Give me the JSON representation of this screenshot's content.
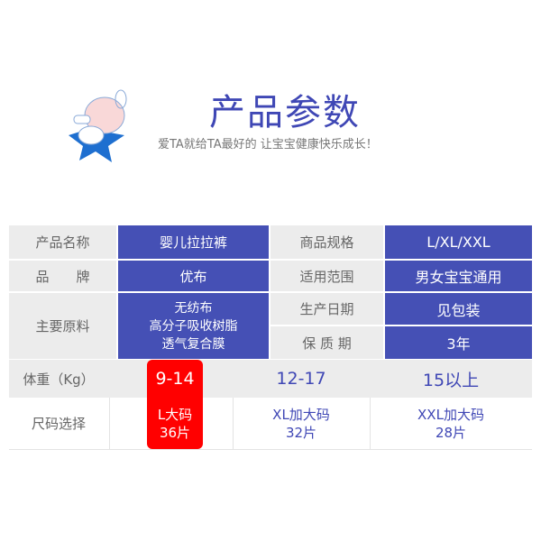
{
  "header": {
    "title": "产品参数",
    "subtitle": "爱TA就给TA最好的 让宝宝健康快乐成长！"
  },
  "colors": {
    "accent": "#4550b5",
    "highlight": "#ff0000",
    "label_bg": "#ececec"
  },
  "specs": {
    "name_label": "产品名称",
    "name_value": "婴儿拉拉裤",
    "spec_label": "商品规格",
    "spec_value": "L/XL/XXL",
    "brand_label": "品　　牌",
    "brand_value": "优布",
    "range_label": "适用范围",
    "range_value": "男女宝宝通用",
    "material_label": "主要原料",
    "material_values": [
      "无纺布",
      "高分子吸收树脂",
      "透气复合膜"
    ],
    "date_label": "生产日期",
    "date_value": "见包装",
    "shelf_label": "保 质 期",
    "shelf_value": "3年"
  },
  "sizes": {
    "weight_label": "体重（Kg）",
    "size_label": "尺码选择",
    "options": [
      {
        "weight": "9-14",
        "size": "L大码",
        "count": "36片",
        "selected": true
      },
      {
        "weight": "12-17",
        "size": "XL加大码",
        "count": "32片",
        "selected": false
      },
      {
        "weight": "15以上",
        "size": "XXL加大码",
        "count": "28片",
        "selected": false
      }
    ]
  }
}
